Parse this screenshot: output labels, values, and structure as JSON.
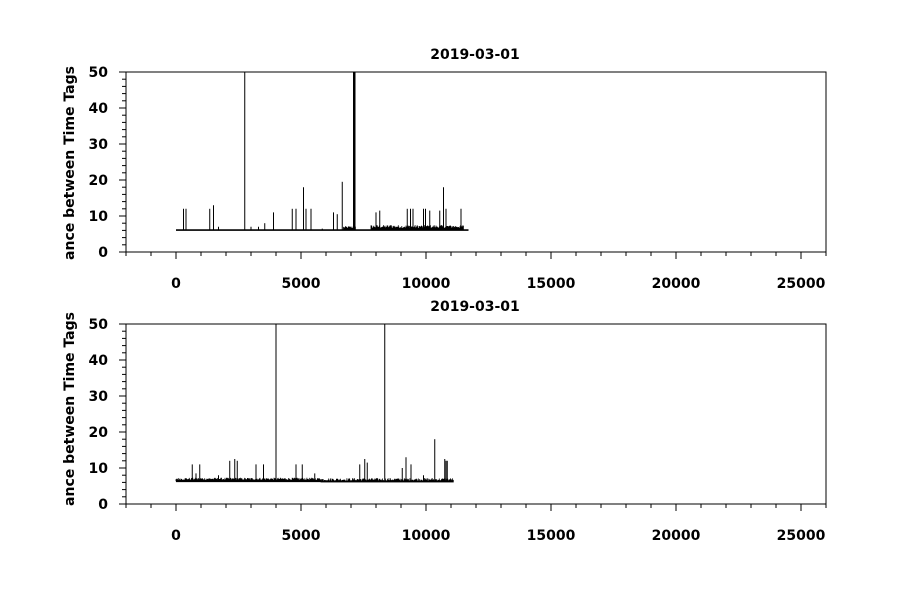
{
  "chart_data": [
    {
      "type": "line",
      "title": "2019-03-01",
      "xlabel": "",
      "ylabel": "ance between Time Tags",
      "xlim": [
        -2000,
        26000
      ],
      "ylim": [
        0,
        50
      ],
      "xticks": [
        0,
        5000,
        10000,
        15000,
        20000,
        25000
      ],
      "xtick_labels": [
        "0",
        "5000",
        "10000",
        "15000",
        "20000",
        "25000"
      ],
      "yticks": [
        0,
        10,
        20,
        30,
        40,
        50
      ],
      "ytick_labels": [
        "0",
        "10",
        "20",
        "30",
        "40",
        "50"
      ],
      "grid": false,
      "baseline": 6.1,
      "x_end": 11700,
      "noise_ranges": [
        [
          6700,
          7200,
          6.1,
          7.2
        ],
        [
          7800,
          11500,
          6.1,
          7.5
        ]
      ],
      "spikes": [
        [
          300,
          12
        ],
        [
          400,
          12
        ],
        [
          1350,
          12
        ],
        [
          1500,
          13
        ],
        [
          1700,
          7
        ],
        [
          2750,
          50
        ],
        [
          3000,
          7
        ],
        [
          3300,
          7
        ],
        [
          3550,
          8
        ],
        [
          3900,
          11
        ],
        [
          4650,
          12
        ],
        [
          4800,
          12
        ],
        [
          5100,
          18
        ],
        [
          5200,
          12
        ],
        [
          5400,
          12
        ],
        [
          5850,
          6.5
        ],
        [
          6300,
          11
        ],
        [
          6450,
          10.5
        ],
        [
          6650,
          19.5
        ],
        [
          7100,
          50
        ],
        [
          7130,
          50
        ],
        [
          7160,
          50
        ],
        [
          8000,
          11
        ],
        [
          8150,
          11.5
        ],
        [
          8600,
          7.5
        ],
        [
          9250,
          12
        ],
        [
          9380,
          12
        ],
        [
          9480,
          12
        ],
        [
          9900,
          12
        ],
        [
          9980,
          12
        ],
        [
          10150,
          11.5
        ],
        [
          10550,
          11.5
        ],
        [
          10700,
          18
        ],
        [
          10800,
          12
        ],
        [
          11050,
          7
        ],
        [
          11400,
          12
        ]
      ]
    },
    {
      "type": "line",
      "title": "2019-03-01",
      "xlabel": "",
      "ylabel": "ance between Time Tags",
      "xlim": [
        -2000,
        26000
      ],
      "ylim": [
        0,
        50
      ],
      "xticks": [
        0,
        5000,
        10000,
        15000,
        20000,
        25000
      ],
      "xtick_labels": [
        "0",
        "5000",
        "10000",
        "15000",
        "20000",
        "25000"
      ],
      "yticks": [
        0,
        10,
        20,
        30,
        40,
        50
      ],
      "ytick_labels": [
        "0",
        "10",
        "20",
        "30",
        "40",
        "50"
      ],
      "grid": false,
      "baseline": 6.3,
      "x_end": 11100,
      "noise_ranges": [
        [
          0,
          5800,
          6.3,
          7.3
        ],
        [
          5800,
          11100,
          6.0,
          7.2
        ]
      ],
      "spikes": [
        [
          650,
          11
        ],
        [
          800,
          8.5
        ],
        [
          950,
          11
        ],
        [
          1700,
          8
        ],
        [
          2150,
          12
        ],
        [
          2350,
          12.5
        ],
        [
          2450,
          12
        ],
        [
          3200,
          11
        ],
        [
          3500,
          11
        ],
        [
          4000,
          50
        ],
        [
          4800,
          11
        ],
        [
          5050,
          11
        ],
        [
          5550,
          8.5
        ],
        [
          7350,
          11
        ],
        [
          7550,
          12.5
        ],
        [
          7650,
          11.5
        ],
        [
          8350,
          50
        ],
        [
          9050,
          10
        ],
        [
          9200,
          13
        ],
        [
          9400,
          11
        ],
        [
          9900,
          8
        ],
        [
          10350,
          18
        ],
        [
          10750,
          12.5
        ],
        [
          10800,
          12
        ],
        [
          10850,
          12
        ]
      ]
    }
  ]
}
